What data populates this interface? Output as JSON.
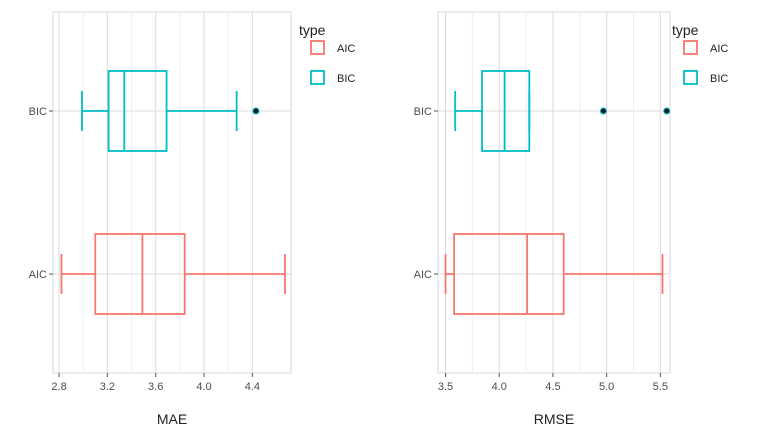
{
  "chart_data": [
    {
      "type": "boxplot",
      "orientation": "horizontal",
      "xlabel": "MAE",
      "ylabel": "",
      "xlim": [
        2.75,
        4.72
      ],
      "xticks": [
        "2.8",
        "3.2",
        "3.6",
        "4.0",
        "4.4"
      ],
      "categories": [
        "BIC",
        "AIC"
      ],
      "series": [
        {
          "name": "BIC",
          "color": "#00BFC4",
          "whisker_low": 2.99,
          "q1": 3.21,
          "median": 3.34,
          "q3": 3.69,
          "whisker_high": 4.27,
          "outliers": [
            4.43
          ]
        },
        {
          "name": "AIC",
          "color": "#F8766D",
          "whisker_low": 2.82,
          "q1": 3.1,
          "median": 3.49,
          "q3": 3.84,
          "whisker_high": 4.67,
          "outliers": []
        }
      ],
      "legend": {
        "title": "type",
        "position": "right",
        "entries": [
          "AIC",
          "BIC"
        ]
      },
      "grid": true
    },
    {
      "type": "boxplot",
      "orientation": "horizontal",
      "xlabel": "RMSE",
      "ylabel": "",
      "xlim": [
        3.43,
        5.59
      ],
      "xticks": [
        "3.5",
        "4.0",
        "4.5",
        "5.0",
        "5.5"
      ],
      "categories": [
        "BIC",
        "AIC"
      ],
      "series": [
        {
          "name": "BIC",
          "color": "#00BFC4",
          "whisker_low": 3.59,
          "q1": 3.84,
          "median": 4.05,
          "q3": 4.28,
          "whisker_high": 4.28,
          "outliers": [
            4.97,
            5.56
          ]
        },
        {
          "name": "AIC",
          "color": "#F8766D",
          "whisker_low": 3.5,
          "q1": 3.58,
          "median": 4.26,
          "q3": 4.6,
          "whisker_high": 5.52,
          "outliers": []
        }
      ],
      "legend": {
        "title": "type",
        "position": "right",
        "entries": [
          "AIC",
          "BIC"
        ]
      },
      "grid": true
    }
  ]
}
